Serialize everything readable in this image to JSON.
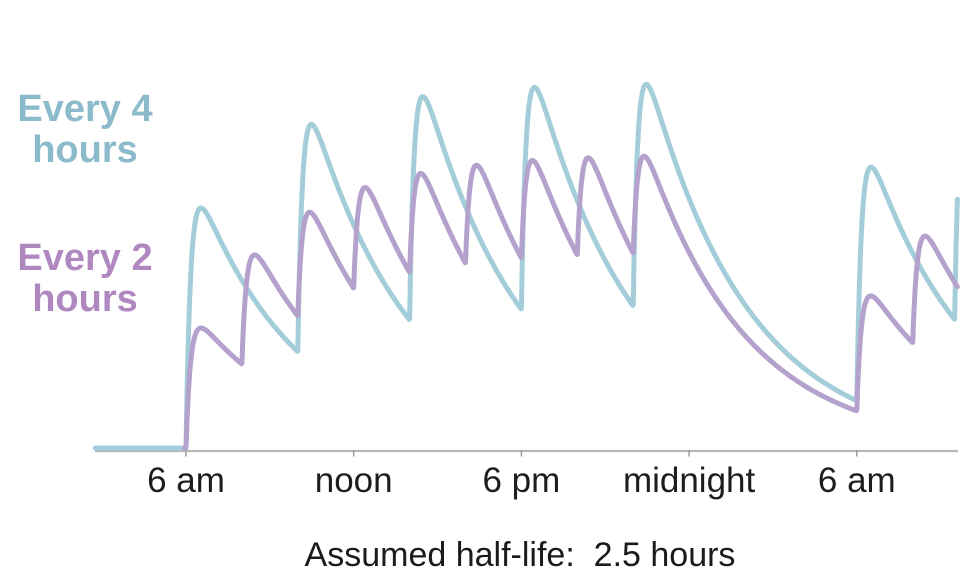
{
  "chart_data": {
    "type": "line",
    "caption": "Assumed half-life:  2.5 hours",
    "x_axis": {
      "tick_labels": [
        "6 am",
        "noon",
        "6 pm",
        "midnight",
        "6 am"
      ],
      "tick_hours": [
        0,
        6,
        12,
        18,
        24
      ],
      "start_hour": -3.25,
      "end_hour": 27.6,
      "axis_color": "#b7b7b7",
      "tick_color": "#9b9b9b"
    },
    "model": {
      "half_life_hours": 2.5,
      "absorption_rate_per_hour": 6
    },
    "series": [
      {
        "name": "Every 4 hours",
        "label_lines": [
          "Every 4",
          "hours"
        ],
        "color": "#a4cdda",
        "label_color": "#8bbaca",
        "dose_hours": [
          0,
          4,
          8,
          12,
          16,
          24,
          27.5
        ],
        "dose_amount": 1,
        "start_hour": -3.25
      },
      {
        "name": "Every 2 hours",
        "label_lines": [
          "Every 2",
          "hours"
        ],
        "color": "#b4a2cd",
        "label_color": "#b088c0",
        "dose_hours": [
          0,
          2,
          4,
          6,
          8,
          10,
          12,
          14,
          16,
          24,
          26
        ],
        "dose_amount": 0.5,
        "start_hour": -0.05
      }
    ]
  }
}
